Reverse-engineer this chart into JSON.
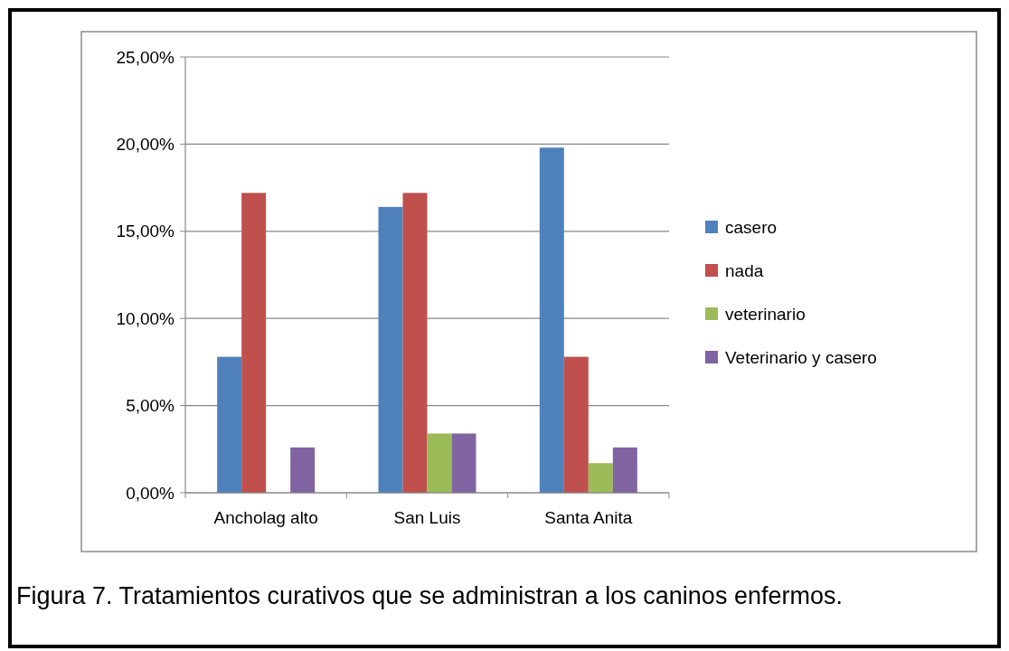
{
  "chart_data": {
    "type": "bar",
    "categories": [
      "Ancholag alto",
      "San Luis",
      "Santa Anita"
    ],
    "series": [
      {
        "name": "casero",
        "color": "#4f81bd",
        "values": [
          7.8,
          16.4,
          19.8
        ]
      },
      {
        "name": "nada",
        "color": "#c0504d",
        "values": [
          17.2,
          17.2,
          7.8
        ]
      },
      {
        "name": "veterinario",
        "color": "#9bbb59",
        "values": [
          0,
          3.4,
          1.7
        ]
      },
      {
        "name": "Veterinario y casero",
        "color": "#8064a2",
        "values": [
          2.6,
          3.4,
          2.6
        ]
      }
    ],
    "ylim": [
      0,
      25
    ],
    "yticks": [
      {
        "value": 0,
        "label": "0,00%"
      },
      {
        "value": 5,
        "label": "5,00%"
      },
      {
        "value": 10,
        "label": "10,00%"
      },
      {
        "value": 15,
        "label": "15,00%"
      },
      {
        "value": 20,
        "label": "20,00%"
      },
      {
        "value": 25,
        "label": "25,00%"
      }
    ],
    "grid": "y",
    "legend": "right",
    "annotations": [
      "Figura 7. Tratamientos curativos que se administran a los caninos enfermos."
    ]
  }
}
